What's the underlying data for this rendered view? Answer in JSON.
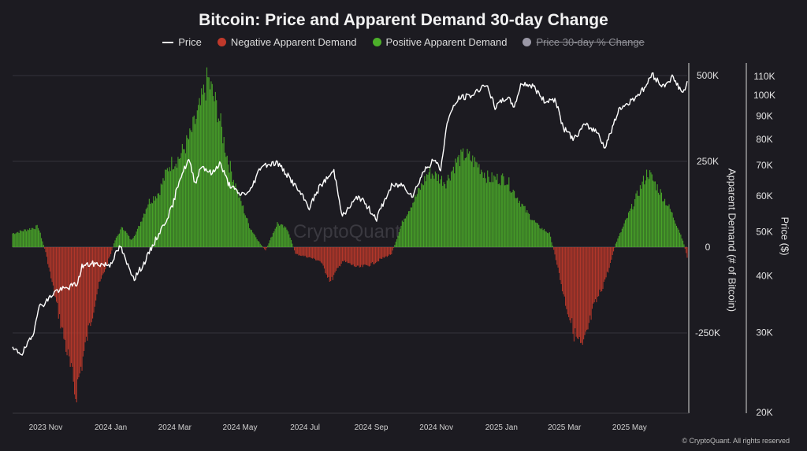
{
  "chart_data": {
    "type": "bar+line",
    "title": "Bitcoin: Price and Apparent Demand 30-day Change",
    "legend": {
      "placement": "top-center",
      "items": [
        {
          "label": "Price",
          "color": "#ffffff",
          "marker": "line",
          "disabled": false
        },
        {
          "label": "Negative Apparent Demand",
          "color": "#c0392b",
          "marker": "dot",
          "disabled": false
        },
        {
          "label": "Positive Apparent Demand",
          "color": "#4caf2a",
          "marker": "dot",
          "disabled": false
        },
        {
          "label": "Price 30-day % Change",
          "color": "#9a98a6",
          "marker": "dot",
          "disabled": true
        }
      ]
    },
    "x_ticks": [
      "2023 Nov",
      "2024 Jan",
      "2024 Mar",
      "2024 May",
      "2024 Jul",
      "2024 Sep",
      "2024 Nov",
      "2025 Jan",
      "2025 Mar",
      "2025 May"
    ],
    "x_range": [
      "2023-10-01",
      "2025-06-24"
    ],
    "y_left": {
      "label": "Apparent Demand (# of Bitcoin)",
      "ylim": [
        -390000,
        500000
      ],
      "ticks": [
        500000,
        250000,
        0,
        -250000
      ],
      "tick_labels": [
        "500K",
        "250K",
        "0",
        "-250K"
      ]
    },
    "y_right": {
      "label": "Price ($)",
      "scale": "log",
      "ylim": [
        20000,
        115000
      ],
      "ticks": [
        110000,
        100000,
        90000,
        80000,
        70000,
        60000,
        50000,
        40000,
        30000,
        20000
      ],
      "tick_labels": [
        "110K",
        "100K",
        "90K",
        "80K",
        "70K",
        "60K",
        "50K",
        "40K",
        "30K",
        "20K"
      ]
    },
    "grid": "horizontal",
    "series": [
      {
        "name": "Price",
        "axis": "right",
        "type": "line",
        "color": "#ffffff",
        "points": [
          [
            "2023-10-01",
            27500
          ],
          [
            "2023-10-10",
            27000
          ],
          [
            "2023-10-20",
            29500
          ],
          [
            "2023-10-25",
            34000
          ],
          [
            "2023-11-01",
            35000
          ],
          [
            "2023-11-10",
            37000
          ],
          [
            "2023-11-20",
            37500
          ],
          [
            "2023-12-01",
            38500
          ],
          [
            "2023-12-05",
            42000
          ],
          [
            "2023-12-15",
            42500
          ],
          [
            "2023-12-31",
            42300
          ],
          [
            "2024-01-10",
            46500
          ],
          [
            "2024-01-15",
            43000
          ],
          [
            "2024-01-23",
            39500
          ],
          [
            "2024-02-01",
            42500
          ],
          [
            "2024-02-10",
            47000
          ],
          [
            "2024-02-20",
            52000
          ],
          [
            "2024-02-28",
            57000
          ],
          [
            "2024-03-05",
            65000
          ],
          [
            "2024-03-14",
            72000
          ],
          [
            "2024-03-20",
            64000
          ],
          [
            "2024-03-26",
            70000
          ],
          [
            "2024-04-05",
            67000
          ],
          [
            "2024-04-12",
            71000
          ],
          [
            "2024-04-20",
            64000
          ],
          [
            "2024-04-30",
            60500
          ],
          [
            "2024-05-10",
            61000
          ],
          [
            "2024-05-21",
            70000
          ],
          [
            "2024-06-05",
            71000
          ],
          [
            "2024-06-20",
            64000
          ],
          [
            "2024-07-05",
            56500
          ],
          [
            "2024-07-15",
            63000
          ],
          [
            "2024-07-28",
            68000
          ],
          [
            "2024-08-05",
            54000
          ],
          [
            "2024-08-20",
            60000
          ],
          [
            "2024-09-06",
            53500
          ],
          [
            "2024-09-20",
            63000
          ],
          [
            "2024-09-30",
            63500
          ],
          [
            "2024-10-10",
            60000
          ],
          [
            "2024-10-20",
            68000
          ],
          [
            "2024-10-30",
            72000
          ],
          [
            "2024-11-05",
            68500
          ],
          [
            "2024-11-12",
            89000
          ],
          [
            "2024-11-22",
            98500
          ],
          [
            "2024-12-05",
            100000
          ],
          [
            "2024-12-17",
            106000
          ],
          [
            "2024-12-26",
            94000
          ],
          [
            "2025-01-06",
            99000
          ],
          [
            "2025-01-13",
            94500
          ],
          [
            "2025-01-20",
            106500
          ],
          [
            "2025-01-31",
            104500
          ],
          [
            "2025-02-10",
            97000
          ],
          [
            "2025-02-20",
            98000
          ],
          [
            "2025-02-28",
            84500
          ],
          [
            "2025-03-10",
            80000
          ],
          [
            "2025-03-20",
            86000
          ],
          [
            "2025-04-01",
            83000
          ],
          [
            "2025-04-08",
            76500
          ],
          [
            "2025-04-22",
            93500
          ],
          [
            "2025-05-01",
            96500
          ],
          [
            "2025-05-15",
            103500
          ],
          [
            "2025-05-22",
            111000
          ],
          [
            "2025-06-01",
            104500
          ],
          [
            "2025-06-10",
            109500
          ],
          [
            "2025-06-20",
            101000
          ],
          [
            "2025-06-24",
            106000
          ]
        ]
      },
      {
        "name": "Apparent Demand",
        "axis": "left",
        "type": "bar",
        "positive_color": "#4caf2a",
        "negative_color": "#c0392b",
        "points": [
          [
            "2023-10-01",
            40000
          ],
          [
            "2023-10-25",
            60000
          ],
          [
            "2023-11-01",
            -15000
          ],
          [
            "2023-11-10",
            -150000
          ],
          [
            "2023-11-20",
            -290000
          ],
          [
            "2023-11-29",
            -430000
          ],
          [
            "2023-12-10",
            -260000
          ],
          [
            "2023-12-20",
            -120000
          ],
          [
            "2024-01-01",
            -20000
          ],
          [
            "2024-01-05",
            20000
          ],
          [
            "2024-01-12",
            60000
          ],
          [
            "2024-01-20",
            20000
          ],
          [
            "2024-01-26",
            50000
          ],
          [
            "2024-02-05",
            130000
          ],
          [
            "2024-02-15",
            160000
          ],
          [
            "2024-02-25",
            240000
          ],
          [
            "2024-03-05",
            260000
          ],
          [
            "2024-03-15",
            320000
          ],
          [
            "2024-03-25",
            410000
          ],
          [
            "2024-04-01",
            490000
          ],
          [
            "2024-04-10",
            400000
          ],
          [
            "2024-04-20",
            250000
          ],
          [
            "2024-04-30",
            150000
          ],
          [
            "2024-05-10",
            60000
          ],
          [
            "2024-05-20",
            10000
          ],
          [
            "2024-05-25",
            -10000
          ],
          [
            "2024-06-05",
            70000
          ],
          [
            "2024-06-15",
            50000
          ],
          [
            "2024-06-22",
            -20000
          ],
          [
            "2024-07-05",
            -30000
          ],
          [
            "2024-07-15",
            -40000
          ],
          [
            "2024-07-25",
            -100000
          ],
          [
            "2024-08-05",
            -40000
          ],
          [
            "2024-08-20",
            -60000
          ],
          [
            "2024-09-01",
            -50000
          ],
          [
            "2024-09-10",
            -35000
          ],
          [
            "2024-09-20",
            -20000
          ],
          [
            "2024-10-01",
            80000
          ],
          [
            "2024-10-15",
            160000
          ],
          [
            "2024-10-25",
            220000
          ],
          [
            "2024-11-10",
            190000
          ],
          [
            "2024-11-20",
            250000
          ],
          [
            "2024-11-28",
            270000
          ],
          [
            "2024-12-10",
            240000
          ],
          [
            "2024-12-20",
            200000
          ],
          [
            "2025-01-05",
            200000
          ],
          [
            "2025-01-15",
            150000
          ],
          [
            "2025-01-25",
            100000
          ],
          [
            "2025-02-05",
            60000
          ],
          [
            "2025-02-15",
            40000
          ],
          [
            "2025-02-20",
            -20000
          ],
          [
            "2025-03-01",
            -150000
          ],
          [
            "2025-03-10",
            -250000
          ],
          [
            "2025-03-18",
            -300000
          ],
          [
            "2025-03-28",
            -180000
          ],
          [
            "2025-04-05",
            -120000
          ],
          [
            "2025-04-12",
            -60000
          ],
          [
            "2025-04-18",
            10000
          ],
          [
            "2025-04-28",
            80000
          ],
          [
            "2025-05-08",
            150000
          ],
          [
            "2025-05-18",
            220000
          ],
          [
            "2025-05-28",
            170000
          ],
          [
            "2025-06-08",
            110000
          ],
          [
            "2025-06-15",
            60000
          ],
          [
            "2025-06-20",
            20000
          ],
          [
            "2025-06-24",
            -30000
          ]
        ]
      }
    ],
    "watermark": "CryptoQuant",
    "credit": "© CryptoQuant. All rights reserved"
  }
}
